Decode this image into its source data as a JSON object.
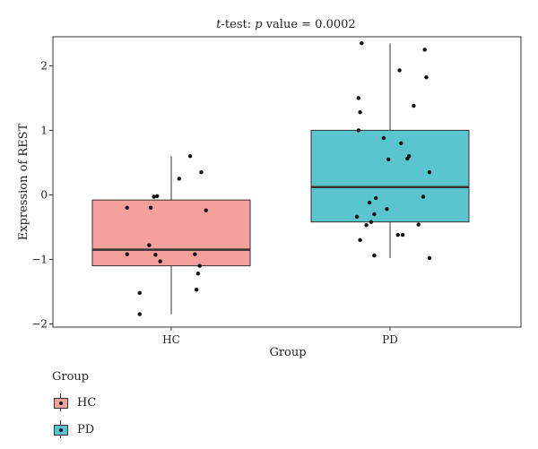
{
  "chart_data": {
    "type": "box",
    "title_prefix": "t",
    "title_mid": "-test: ",
    "title_p": "p",
    "title_suffix": " value = 0.0002",
    "xlabel": "Group",
    "ylabel": "Expression of REST",
    "ylim": [
      -2.05,
      2.45
    ],
    "yticks": [
      -2,
      -1,
      0,
      1,
      2
    ],
    "ytick_labels": [
      "−2",
      "−1",
      "0",
      "1",
      "2"
    ],
    "categories": [
      "HC",
      "PD"
    ],
    "grid": false,
    "legend": {
      "title": "Group",
      "placement": "bottom-left",
      "entries": [
        {
          "label": "HC",
          "color": "#F4A09C"
        },
        {
          "label": "PD",
          "color": "#5BC5CF"
        }
      ]
    },
    "boxes": [
      {
        "group": "HC",
        "color": "#F4A09C",
        "whisker_low": -1.85,
        "q1": -1.1,
        "median": -0.85,
        "q3": -0.08,
        "whisker_high": 0.6
      },
      {
        "group": "PD",
        "color": "#5BC5CF",
        "whisker_low": -0.98,
        "q1": -0.42,
        "median": 0.12,
        "q3": 1.0,
        "whisker_high": 2.35
      }
    ],
    "points": [
      {
        "group": "HC",
        "offset": -0.28,
        "y": -0.2
      },
      {
        "group": "HC",
        "offset": -0.13,
        "y": -0.2
      },
      {
        "group": "HC",
        "offset": -0.11,
        "y": -0.03
      },
      {
        "group": "HC",
        "offset": -0.09,
        "y": -0.02
      },
      {
        "group": "HC",
        "offset": 0.05,
        "y": 0.25
      },
      {
        "group": "HC",
        "offset": 0.12,
        "y": 0.6
      },
      {
        "group": "HC",
        "offset": 0.19,
        "y": 0.35
      },
      {
        "group": "HC",
        "offset": 0.22,
        "y": -0.24
      },
      {
        "group": "HC",
        "offset": -0.14,
        "y": -0.78
      },
      {
        "group": "HC",
        "offset": -0.28,
        "y": -0.92
      },
      {
        "group": "HC",
        "offset": -0.1,
        "y": -0.93
      },
      {
        "group": "HC",
        "offset": -0.07,
        "y": -1.03
      },
      {
        "group": "HC",
        "offset": 0.15,
        "y": -0.92
      },
      {
        "group": "HC",
        "offset": 0.18,
        "y": -1.1
      },
      {
        "group": "HC",
        "offset": 0.17,
        "y": -1.22
      },
      {
        "group": "HC",
        "offset": 0.16,
        "y": -1.47
      },
      {
        "group": "HC",
        "offset": -0.2,
        "y": -1.52
      },
      {
        "group": "HC",
        "offset": -0.2,
        "y": -1.85
      },
      {
        "group": "PD",
        "offset": -0.18,
        "y": 2.35
      },
      {
        "group": "PD",
        "offset": -0.2,
        "y": 1.5
      },
      {
        "group": "PD",
        "offset": -0.19,
        "y": 1.28
      },
      {
        "group": "PD",
        "offset": -0.2,
        "y": 1.0
      },
      {
        "group": "PD",
        "offset": -0.04,
        "y": 0.88
      },
      {
        "group": "PD",
        "offset": 0.06,
        "y": 1.93
      },
      {
        "group": "PD",
        "offset": 0.15,
        "y": 1.38
      },
      {
        "group": "PD",
        "offset": 0.22,
        "y": 2.25
      },
      {
        "group": "PD",
        "offset": 0.23,
        "y": 1.82
      },
      {
        "group": "PD",
        "offset": 0.07,
        "y": 0.8
      },
      {
        "group": "PD",
        "offset": 0.12,
        "y": 0.6
      },
      {
        "group": "PD",
        "offset": 0.11,
        "y": 0.56
      },
      {
        "group": "PD",
        "offset": -0.01,
        "y": 0.55
      },
      {
        "group": "PD",
        "offset": 0.25,
        "y": 0.35
      },
      {
        "group": "PD",
        "offset": 0.21,
        "y": -0.03
      },
      {
        "group": "PD",
        "offset": -0.09,
        "y": -0.05
      },
      {
        "group": "PD",
        "offset": -0.13,
        "y": -0.12
      },
      {
        "group": "PD",
        "offset": -0.02,
        "y": -0.22
      },
      {
        "group": "PD",
        "offset": -0.1,
        "y": -0.3
      },
      {
        "group": "PD",
        "offset": -0.21,
        "y": -0.34
      },
      {
        "group": "PD",
        "offset": -0.12,
        "y": -0.42
      },
      {
        "group": "PD",
        "offset": -0.15,
        "y": -0.47
      },
      {
        "group": "PD",
        "offset": 0.18,
        "y": -0.46
      },
      {
        "group": "PD",
        "offset": 0.05,
        "y": -0.62
      },
      {
        "group": "PD",
        "offset": 0.08,
        "y": -0.62
      },
      {
        "group": "PD",
        "offset": -0.19,
        "y": -0.7
      },
      {
        "group": "PD",
        "offset": -0.1,
        "y": -0.94
      },
      {
        "group": "PD",
        "offset": 0.25,
        "y": -0.98
      }
    ]
  }
}
